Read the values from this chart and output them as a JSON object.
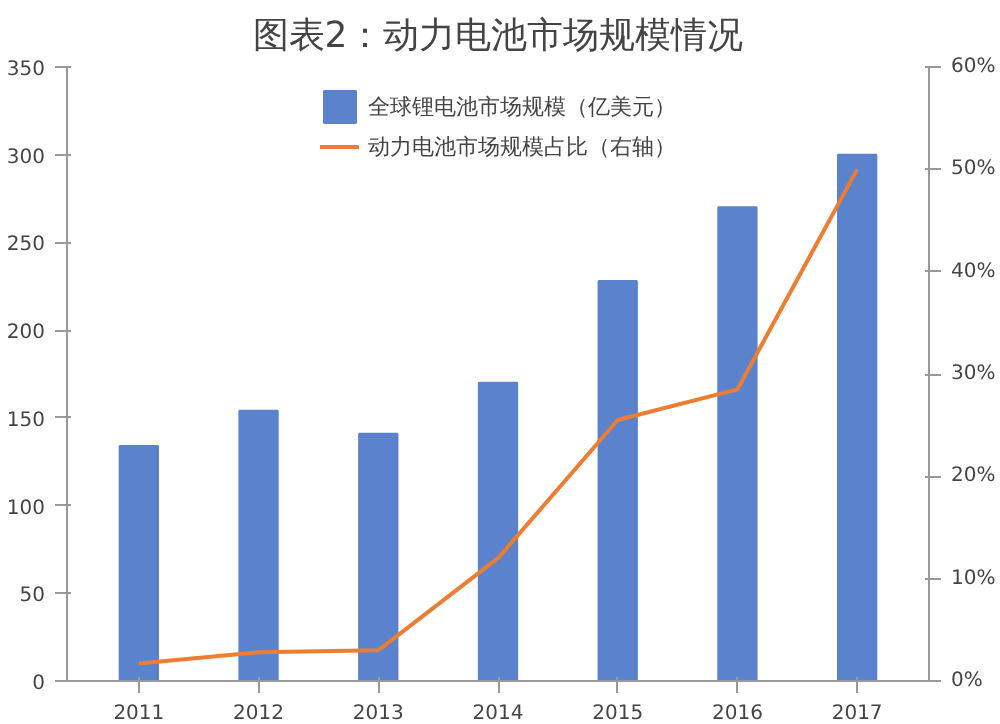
{
  "chart_data": {
    "type": "bar",
    "title": "图表2：动力电池市场规模情况",
    "categories": [
      "2011",
      "2012",
      "2013",
      "2014",
      "2015",
      "2016",
      "2017"
    ],
    "series": [
      {
        "name": "全球锂电池市场规模（亿美元）",
        "color": "#5b82cc",
        "values": [
          134,
          154,
          141,
          170,
          228,
          270,
          300
        ]
      },
      {
        "name": "动力电池市场规模占比（右轴）",
        "type": "line",
        "axis": "y2",
        "color": "#ed7d31",
        "values": [
          1.7,
          2.8,
          3,
          12,
          25.5,
          28.5,
          50
        ]
      }
    ],
    "ylim": [
      0,
      350
    ],
    "yticks": [
      0,
      50,
      100,
      150,
      200,
      250,
      300,
      350
    ],
    "y2lim": [
      0,
      60
    ],
    "y2ticks": [
      {
        "value": 0,
        "label": "0%"
      },
      {
        "value": 10,
        "label": "10%"
      },
      {
        "value": 20,
        "label": "20%"
      },
      {
        "value": 30,
        "label": "30%"
      },
      {
        "value": 40,
        "label": "40%"
      },
      {
        "value": 50,
        "label": "50%"
      },
      {
        "value": 60,
        "label": "60%"
      }
    ],
    "legend": "top",
    "grid": false
  }
}
